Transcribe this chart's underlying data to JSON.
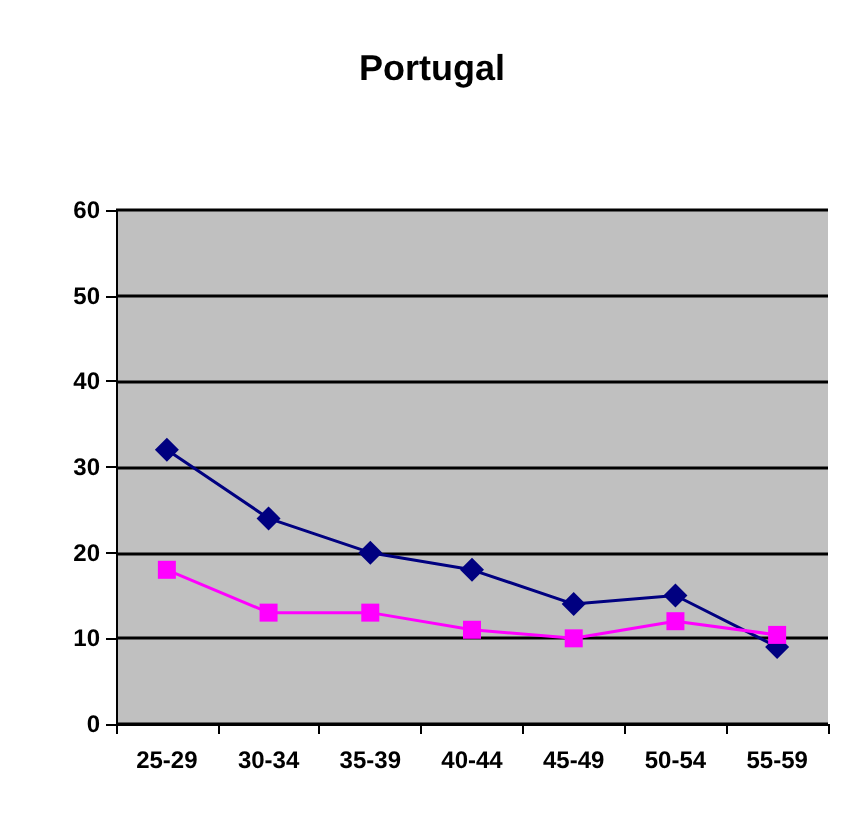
{
  "chart_data": {
    "type": "line",
    "title": "Portugal",
    "categories": [
      "25-29",
      "30-34",
      "35-39",
      "40-44",
      "45-49",
      "50-54",
      "55-59"
    ],
    "series": [
      {
        "color": "#000080",
        "marker": "diamond",
        "values": [
          32,
          24,
          20,
          18,
          14,
          15,
          9
        ]
      },
      {
        "color": "#ff00ff",
        "marker": "square",
        "values": [
          18,
          13,
          13,
          11,
          10,
          12,
          10.4
        ]
      }
    ],
    "ylim": [
      0,
      60
    ],
    "yticks": [
      0,
      10,
      20,
      30,
      40,
      50,
      60
    ],
    "grid": "y",
    "line_style": "solid"
  }
}
